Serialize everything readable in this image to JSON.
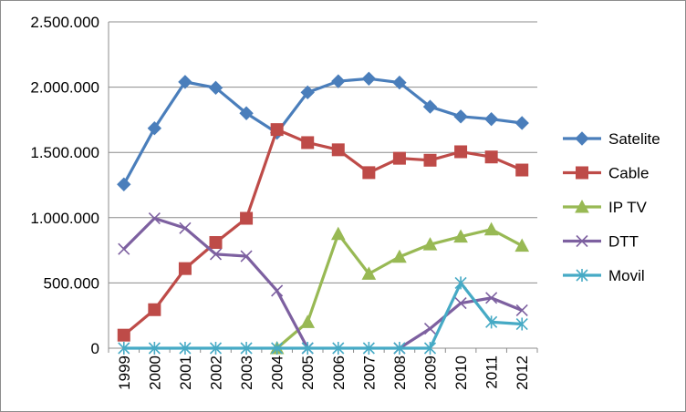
{
  "chart_data": {
    "type": "line",
    "title": "",
    "xlabel": "",
    "ylabel": "",
    "ylim": [
      0,
      2500000
    ],
    "y_ticks": [
      0,
      500000,
      1000000,
      1500000,
      2000000,
      2500000
    ],
    "y_tick_labels": [
      "0",
      "500.000",
      "1.000.000",
      "1.500.000",
      "2.000.000",
      "2.500.000"
    ],
    "categories": [
      "1999",
      "2000",
      "2001",
      "2002",
      "2003",
      "2004",
      "2005",
      "2006",
      "2007",
      "2008",
      "2009",
      "2010",
      "2011",
      "2012"
    ],
    "grid": "horizontal",
    "legend_position": "right",
    "series": [
      {
        "name": "Satelite",
        "color": "#4a7ebb",
        "marker": "diamond",
        "values": [
          1255000,
          1685000,
          2040000,
          1995000,
          1800000,
          1650000,
          1960000,
          2045000,
          2065000,
          2035000,
          1850000,
          1775000,
          1755000,
          1725000
        ]
      },
      {
        "name": "Cable",
        "color": "#be4b48",
        "marker": "square",
        "values": [
          100000,
          295000,
          610000,
          810000,
          995000,
          1675000,
          1575000,
          1520000,
          1345000,
          1455000,
          1440000,
          1505000,
          1465000,
          1365000
        ]
      },
      {
        "name": "IP TV",
        "color": "#98b954",
        "marker": "triangle",
        "values": [
          null,
          null,
          null,
          null,
          null,
          0,
          200000,
          875000,
          570000,
          700000,
          795000,
          855000,
          910000,
          785000
        ]
      },
      {
        "name": "DTT",
        "color": "#7d60a0",
        "marker": "x",
        "values": [
          760000,
          995000,
          920000,
          720000,
          705000,
          440000,
          0,
          null,
          null,
          0,
          150000,
          345000,
          385000,
          290000
        ]
      },
      {
        "name": "Movil",
        "color": "#46aac5",
        "marker": "star",
        "values": [
          0,
          0,
          0,
          0,
          0,
          0,
          0,
          0,
          0,
          0,
          0,
          500000,
          200000,
          185000
        ]
      }
    ]
  }
}
